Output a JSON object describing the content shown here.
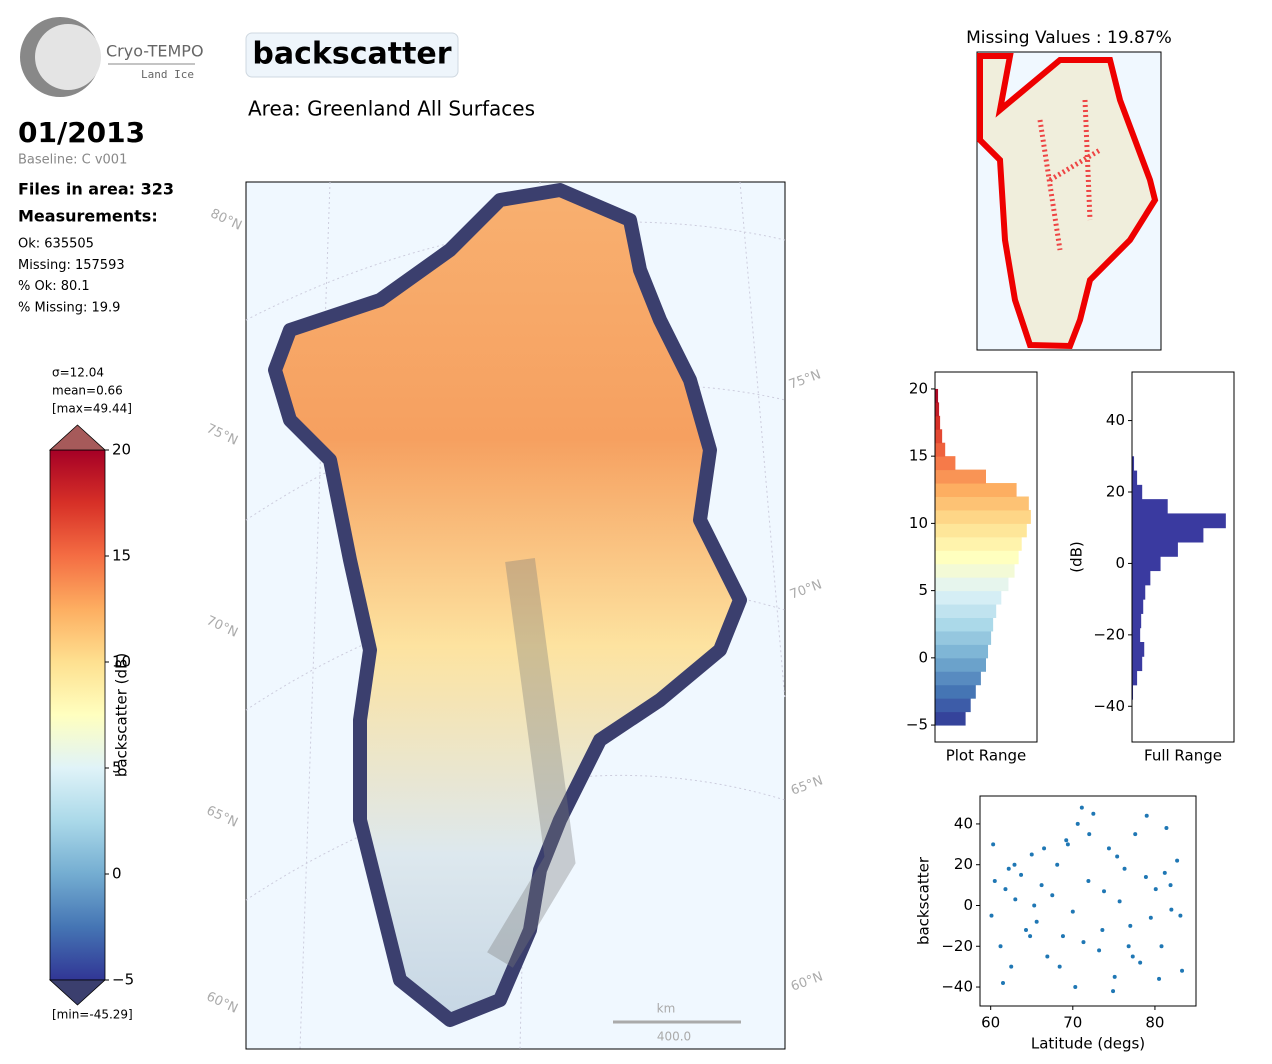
{
  "logo": {
    "name": "Cryo-TEMPO",
    "subtitle": "Land Ice"
  },
  "title": "backscatter",
  "area": "Area: Greenland All Surfaces",
  "date": "01/2013",
  "baseline": "Baseline: C v001",
  "files": "Files in area: 323",
  "measurements_heading": "Measurements:",
  "stats": [
    "Ok: 635505",
    "Missing: 157593",
    "% Ok: 80.1",
    "% Missing: 19.9"
  ],
  "colorbar": {
    "label": "backscatter (dB)",
    "stats": [
      "σ=12.04",
      "mean=0.66",
      "[max=49.44]"
    ],
    "min_label": "[min=-45.29]",
    "lim": [
      -5,
      20
    ],
    "ticks": [
      {
        "value": -5,
        "label": "−5"
      },
      0,
      5,
      10,
      15,
      20
    ],
    "colors": [
      "#313695",
      "#4575b4",
      "#74add1",
      "#abd9e9",
      "#e0f3f8",
      "#ffffbf",
      "#fee090",
      "#fdae61",
      "#f46d43",
      "#d73027",
      "#a50026"
    ]
  },
  "map": {
    "lat_labels_left": [
      "80°N",
      "75°N",
      "70°N",
      "65°N",
      "60°N"
    ],
    "lat_labels_right": [
      "75°N",
      "70°N",
      "65°N",
      "60°N"
    ],
    "scale_unit": "km",
    "scale_value": "400.0"
  },
  "missing_map": {
    "title": "Missing Values : 19.87%"
  },
  "chart_data": [
    {
      "type": "histogram",
      "orientation": "horizontal",
      "xlabel": "Plot Range",
      "colormap": true,
      "bins": [
        -5,
        -4,
        -3,
        -2,
        -1,
        0,
        1,
        2,
        3,
        4,
        5,
        6,
        7,
        8,
        9,
        10,
        11,
        12,
        13,
        14,
        15,
        16,
        17,
        18,
        19,
        20
      ],
      "values": [
        30,
        35,
        40,
        45,
        50,
        52,
        55,
        57,
        60,
        65,
        72,
        78,
        82,
        85,
        90,
        94,
        92,
        80,
        50,
        20,
        10,
        7,
        5,
        4,
        3
      ],
      "xlim": [
        0,
        100
      ],
      "ylim": [
        -6.26,
        21.26
      ],
      "yticks": [
        {
          "value": -5,
          "label": "−5"
        },
        0,
        5,
        10,
        15,
        20
      ]
    },
    {
      "type": "histogram",
      "orientation": "horizontal",
      "xlabel": "Full Range",
      "ylabel": "(dB)",
      "color": "#3a3aa0",
      "bins": [
        -46,
        -42,
        -38,
        -34,
        -30,
        -26,
        -22,
        -18,
        -14,
        -10,
        -6,
        -2,
        2,
        6,
        10,
        14,
        18,
        22,
        26,
        30,
        34,
        38,
        42,
        46,
        50
      ],
      "values": [
        0,
        0,
        1,
        5,
        10,
        12,
        8,
        9,
        11,
        13,
        18,
        28,
        45,
        70,
        92,
        35,
        10,
        5,
        2,
        0,
        0,
        0,
        0,
        0
      ],
      "xlim": [
        0,
        100
      ],
      "ylim": [
        -50,
        53.6
      ],
      "yticks": [
        {
          "value": -40,
          "label": "−40"
        },
        {
          "value": -20,
          "label": "−20"
        },
        0,
        20,
        40
      ]
    },
    {
      "type": "scatter",
      "xlabel": "Latitude (degs)",
      "ylabel": "backscatter",
      "color": "#1f77b4",
      "x": [
        60.1,
        60.5,
        61.2,
        61.8,
        62.5,
        63.0,
        63.7,
        64.3,
        65.0,
        65.6,
        66.2,
        66.9,
        67.5,
        68.1,
        68.8,
        69.4,
        70.0,
        70.6,
        71.3,
        71.9,
        72.5,
        73.2,
        73.8,
        74.4,
        75.1,
        75.7,
        76.3,
        77.0,
        77.6,
        78.2,
        78.9,
        79.5,
        80.1,
        80.8,
        81.4,
        82.0,
        82.7,
        83.3,
        60.3,
        61.5,
        62.9,
        64.8,
        66.5,
        68.4,
        70.3,
        72.0,
        73.6,
        75.4,
        77.3,
        79.0,
        80.5,
        81.9,
        83.1,
        65.3,
        71.1,
        76.8,
        81.2,
        69.2,
        74.9,
        62.2
      ],
      "values": [
        -5,
        12,
        -20,
        8,
        -30,
        3,
        15,
        -12,
        25,
        -8,
        10,
        -25,
        5,
        20,
        -15,
        30,
        -3,
        40,
        -18,
        12,
        45,
        -22,
        7,
        28,
        -35,
        2,
        18,
        -10,
        35,
        -28,
        14,
        -6,
        8,
        -20,
        38,
        -2,
        22,
        -32,
        30,
        -38,
        20,
        -15,
        28,
        -30,
        -40,
        35,
        -12,
        24,
        -25,
        44,
        -36,
        10,
        -5,
        0,
        48,
        -20,
        16,
        32,
        -42,
        18
      ],
      "xlim": [
        58.7,
        85
      ],
      "ylim": [
        -49.3,
        53.7
      ],
      "xticks": [
        60,
        70,
        80
      ],
      "yticks": [
        {
          "value": -40,
          "label": "−40"
        },
        {
          "value": -20,
          "label": "−20"
        },
        0,
        20,
        40
      ]
    }
  ]
}
